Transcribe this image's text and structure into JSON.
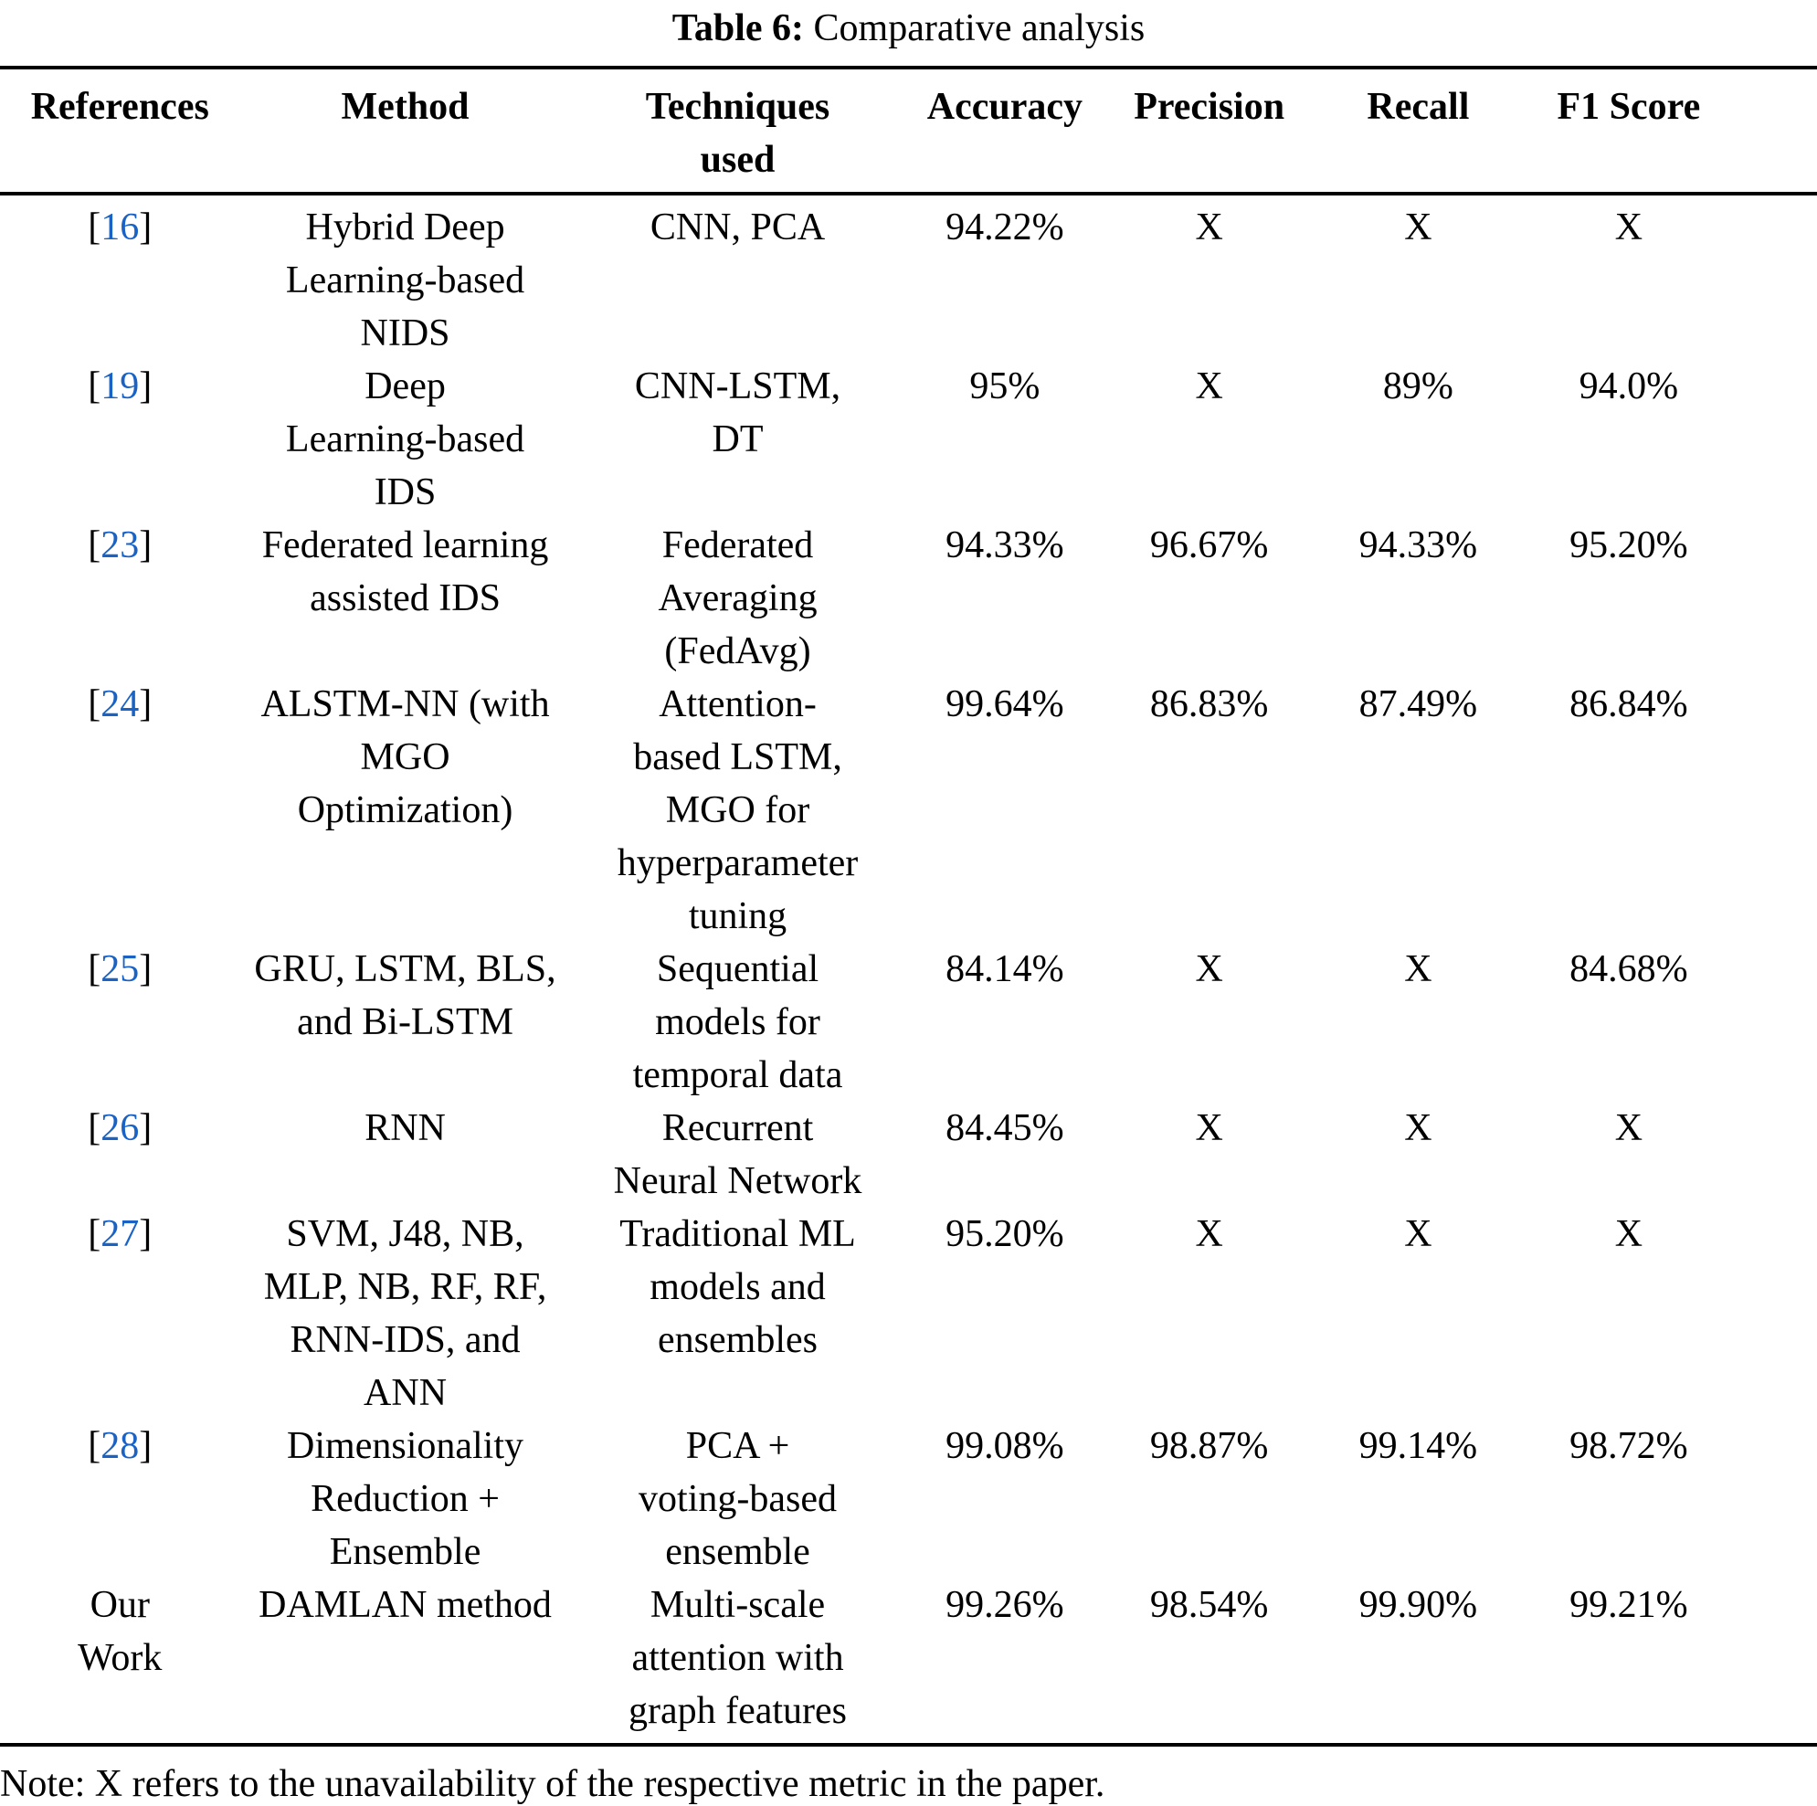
{
  "title": {
    "label": "Table 6:",
    "text": " Comparative analysis"
  },
  "table": {
    "headers": {
      "references": "References",
      "method": "Method",
      "techniques": "Techniques\nused",
      "accuracy": "Accuracy",
      "precision": "Precision",
      "recall": "Recall",
      "f1": "F1 Score"
    },
    "rows": [
      {
        "ref_open": "[",
        "ref_num": "16",
        "ref_close": "]",
        "method": "Hybrid Deep\nLearning-based\nNIDS",
        "techniques": "CNN, PCA",
        "accuracy": "94.22%",
        "precision": "X",
        "recall": "X",
        "f1": "X"
      },
      {
        "ref_open": "[",
        "ref_num": "19",
        "ref_close": "]",
        "method": "Deep\nLearning-based\nIDS",
        "techniques": "CNN-LSTM,\nDT",
        "accuracy": "95%",
        "precision": "X",
        "recall": "89%",
        "f1": "94.0%"
      },
      {
        "ref_open": "[",
        "ref_num": "23",
        "ref_close": "]",
        "method": "Federated learning\nassisted IDS",
        "techniques": "Federated\nAveraging\n(FedAvg)",
        "accuracy": "94.33%",
        "precision": "96.67%",
        "recall": "94.33%",
        "f1": "95.20%"
      },
      {
        "ref_open": "[",
        "ref_num": "24",
        "ref_close": "]",
        "method": "ALSTM-NN (with\nMGO\nOptimization)",
        "techniques": "Attention-\nbased LSTM,\nMGO for\nhyperparameter\ntuning",
        "accuracy": "99.64%",
        "precision": "86.83%",
        "recall": "87.49%",
        "f1": "86.84%"
      },
      {
        "ref_open": "[",
        "ref_num": "25",
        "ref_close": "]",
        "method": "GRU, LSTM, BLS,\nand Bi-LSTM",
        "techniques": "Sequential\nmodels for\ntemporal data",
        "accuracy": "84.14%",
        "precision": "X",
        "recall": "X",
        "f1": "84.68%"
      },
      {
        "ref_open": "[",
        "ref_num": "26",
        "ref_close": "]",
        "method": "RNN",
        "techniques": "Recurrent\nNeural Network",
        "accuracy": "84.45%",
        "precision": "X",
        "recall": "X",
        "f1": "X"
      },
      {
        "ref_open": "[",
        "ref_num": "27",
        "ref_close": "]",
        "method": "SVM, J48, NB,\nMLP, NB, RF, RF,\nRNN-IDS, and\nANN",
        "techniques": "Traditional ML\nmodels and\nensembles",
        "accuracy": "95.20%",
        "precision": "X",
        "recall": "X",
        "f1": "X"
      },
      {
        "ref_open": "[",
        "ref_num": "28",
        "ref_close": "]",
        "method": "Dimensionality\nReduction +\nEnsemble",
        "techniques": "PCA +\nvoting-based\nensemble",
        "accuracy": "99.08%",
        "precision": "98.87%",
        "recall": "99.14%",
        "f1": "98.72%"
      },
      {
        "ref_text": "Our\nWork",
        "method": "DAMLAN method",
        "techniques": "Multi-scale\nattention with\ngraph features",
        "accuracy": "99.26%",
        "precision": "98.54%",
        "recall": "99.90%",
        "f1": "99.21%"
      }
    ]
  },
  "note": "Note: X refers to the unavailability of the respective metric in the paper.",
  "colors": {
    "text": "#000000",
    "rule": "#000000",
    "citation_link": "#1A63C5"
  }
}
